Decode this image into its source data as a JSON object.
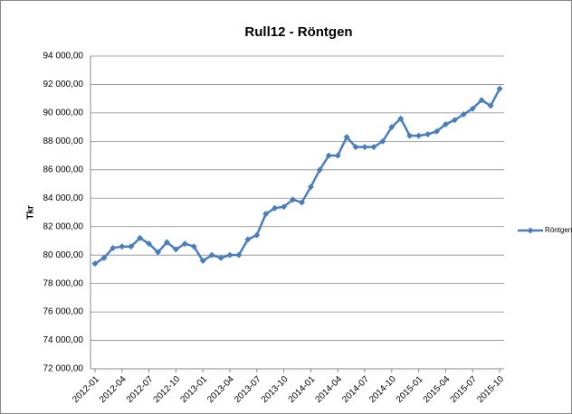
{
  "chart_data": {
    "type": "line",
    "title": "Rull12 - Röntgen",
    "y_label": "Tkr",
    "categories": [
      "2012-01",
      null,
      null,
      "2012-04",
      null,
      null,
      "2012-07",
      null,
      null,
      "2012-10",
      null,
      null,
      "2013-01",
      null,
      null,
      "2013-04",
      null,
      null,
      "2013-07",
      null,
      null,
      "2013-10",
      null,
      null,
      "2014-01",
      null,
      null,
      "2014-04",
      null,
      null,
      "2014-07",
      null,
      null,
      "2014-10",
      null,
      null,
      "2015-01",
      null,
      null,
      "2015-04",
      null,
      null,
      "2015-07",
      null,
      null,
      "2015-10"
    ],
    "series": [
      {
        "name": "Röntgen",
        "color": "#4a7ebb",
        "values": [
          79400,
          79800,
          80500,
          80600,
          80600,
          81200,
          80800,
          80200,
          80900,
          80400,
          80800,
          80600,
          79600,
          80000,
          79800,
          80000,
          80000,
          81100,
          81400,
          82900,
          83300,
          83400,
          83900,
          83700,
          84800,
          86000,
          87000,
          87000,
          88300,
          87600,
          87600,
          87600,
          88000,
          89000,
          89600,
          88400,
          88400,
          88500,
          88700,
          89200,
          89500,
          89900,
          90300,
          90900,
          90500,
          91700
        ]
      }
    ],
    "ylim": [
      72000,
      94000
    ],
    "yticks": [
      {
        "value": 72000,
        "label": "72 000,00"
      },
      {
        "value": 74000,
        "label": "74 000,00"
      },
      {
        "value": 76000,
        "label": "76 000,00"
      },
      {
        "value": 78000,
        "label": "78 000,00"
      },
      {
        "value": 80000,
        "label": "80 000,00"
      },
      {
        "value": 82000,
        "label": "82 000,00"
      },
      {
        "value": 84000,
        "label": "84 000,00"
      },
      {
        "value": 86000,
        "label": "86 000,00"
      },
      {
        "value": 88000,
        "label": "88 000,00"
      },
      {
        "value": 90000,
        "label": "90 000,00"
      },
      {
        "value": 92000,
        "label": "92 000,00"
      },
      {
        "value": 94000,
        "label": "94 000,00"
      }
    ],
    "grid": true,
    "legend": "right"
  }
}
